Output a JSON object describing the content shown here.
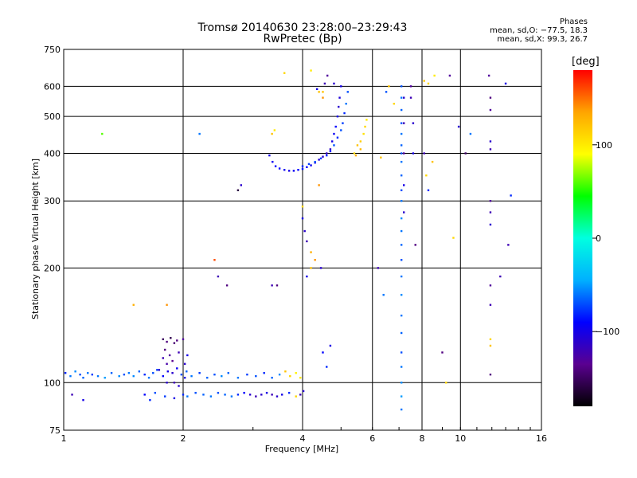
{
  "chart_data": {
    "type": "scatter",
    "title": "Tromsø 20140630 23:28:00–23:29:43",
    "subtitle": "RwPretec (Bp)",
    "xlabel": "Frequency [MHz]",
    "ylabel": "Stationary phase Virtual Height [km]",
    "x_scale": "log",
    "y_scale": "log",
    "xlim": [
      1,
      16
    ],
    "ylim": [
      75,
      750
    ],
    "x_ticks": [
      1,
      2,
      4,
      6,
      8,
      10,
      16
    ],
    "x_tick_labels": [
      "1",
      "2",
      "4",
      "6",
      "8",
      "10",
      "16"
    ],
    "y_ticks": [
      75,
      100,
      200,
      300,
      400,
      500,
      600,
      750
    ],
    "y_tick_labels": [
      "75",
      "100",
      "200",
      "300",
      "400",
      "500",
      "600",
      "750"
    ],
    "grid": true,
    "phases_header": "Phases",
    "phase_stats": [
      "mean, sd,O: −77.5, 18.3",
      "mean, sd,X:  99.3, 26.7"
    ],
    "colorbar": {
      "label": "[deg]",
      "range": [
        -180,
        180
      ],
      "ticks": [
        100,
        0,
        -100
      ],
      "tick_labels": [
        "100",
        "0",
        "−100"
      ],
      "colors": [
        "#000000",
        "#5a0090",
        "#0000ff",
        "#00b0ff",
        "#00ffe0",
        "#00ff00",
        "#ffff00",
        "#ffa500",
        "#ff0000"
      ]
    },
    "series": [
      {
        "points": [
          [
            1.01,
            106,
            -80
          ],
          [
            1.04,
            104,
            -60
          ],
          [
            1.07,
            107,
            -55
          ],
          [
            1.1,
            105,
            -70
          ],
          [
            1.12,
            103,
            -65
          ],
          [
            1.15,
            106,
            -60
          ],
          [
            1.18,
            105,
            -75
          ],
          [
            1.22,
            104,
            -60
          ],
          [
            1.27,
            103,
            -50
          ],
          [
            1.32,
            106,
            -65
          ],
          [
            1.38,
            104,
            -55
          ],
          [
            1.42,
            105,
            -70
          ],
          [
            1.46,
            106,
            -60
          ],
          [
            1.5,
            104,
            -55
          ],
          [
            1.55,
            107,
            -65
          ],
          [
            1.6,
            105,
            -80
          ],
          [
            1.64,
            103,
            -60
          ],
          [
            1.68,
            106,
            -70
          ],
          [
            1.72,
            108,
            -75
          ],
          [
            1.78,
            104,
            -90
          ],
          [
            1.83,
            107,
            -100
          ],
          [
            1.88,
            106,
            -110
          ],
          [
            1.93,
            109,
            -95
          ],
          [
            1.98,
            105,
            -70
          ],
          [
            2.04,
            107,
            -65
          ],
          [
            2.1,
            104,
            -60
          ],
          [
            2.2,
            106,
            -75
          ],
          [
            2.3,
            103,
            -65
          ],
          [
            2.4,
            105,
            -70
          ],
          [
            2.5,
            104,
            -55
          ],
          [
            2.6,
            106,
            -65
          ],
          [
            2.75,
            103,
            -60
          ],
          [
            2.9,
            105,
            -75
          ],
          [
            3.05,
            104,
            -70
          ],
          [
            3.2,
            106,
            -80
          ],
          [
            3.35,
            103,
            -65
          ],
          [
            3.5,
            105,
            -55
          ],
          [
            3.62,
            107,
            120
          ],
          [
            3.72,
            104,
            110
          ],
          [
            3.85,
            106,
            95
          ],
          [
            3.95,
            103,
            100
          ],
          [
            1.05,
            93,
            -120
          ],
          [
            1.12,
            90,
            -100
          ],
          [
            1.6,
            93,
            -90
          ],
          [
            1.65,
            90,
            -80
          ],
          [
            1.7,
            94,
            -70
          ],
          [
            1.8,
            92,
            -75
          ],
          [
            1.9,
            91,
            -100
          ],
          [
            2.0,
            93,
            -80
          ],
          [
            2.05,
            92,
            -60
          ],
          [
            2.15,
            94,
            -70
          ],
          [
            2.25,
            93,
            -65
          ],
          [
            2.35,
            92,
            -60
          ],
          [
            2.45,
            94,
            -70
          ],
          [
            2.55,
            93,
            -65
          ],
          [
            2.65,
            92,
            -60
          ],
          [
            2.75,
            93,
            -80
          ],
          [
            2.85,
            94,
            -90
          ],
          [
            2.95,
            93,
            -110
          ],
          [
            3.05,
            92,
            -120
          ],
          [
            3.15,
            93,
            -110
          ],
          [
            3.25,
            94,
            -100
          ],
          [
            3.35,
            93,
            -120
          ],
          [
            3.45,
            92,
            -110
          ],
          [
            3.55,
            93,
            -100
          ],
          [
            3.7,
            94,
            -80
          ],
          [
            3.85,
            92,
            110
          ],
          [
            3.95,
            93,
            -120
          ],
          [
            4.02,
            95,
            -110
          ],
          [
            1.78,
            130,
            -150
          ],
          [
            1.82,
            128,
            -140
          ],
          [
            1.86,
            131,
            -155
          ],
          [
            1.9,
            127,
            -145
          ],
          [
            1.93,
            129,
            -140
          ],
          [
            1.8,
            122,
            -140
          ],
          [
            1.85,
            118,
            -130
          ],
          [
            1.88,
            114,
            -135
          ],
          [
            1.82,
            112,
            -125
          ],
          [
            1.78,
            116,
            -120
          ],
          [
            2.0,
            130,
            -130
          ],
          [
            2.05,
            118,
            -100
          ],
          [
            2.02,
            112,
            -110
          ],
          [
            1.95,
            120,
            -120
          ],
          [
            1.74,
            108,
            -110
          ],
          [
            1.82,
            100,
            -110
          ],
          [
            1.9,
            100,
            -120
          ],
          [
            1.95,
            98,
            -110
          ],
          [
            2.02,
            103,
            -100
          ],
          [
            3.3,
            395,
            -100
          ],
          [
            3.36,
            380,
            -95
          ],
          [
            3.42,
            370,
            -90
          ],
          [
            3.5,
            365,
            -90
          ],
          [
            3.6,
            362,
            -95
          ],
          [
            3.7,
            360,
            -100
          ],
          [
            3.8,
            360,
            -95
          ],
          [
            3.9,
            362,
            -90
          ],
          [
            4.0,
            364,
            -85
          ],
          [
            4.1,
            368,
            -90
          ],
          [
            4.2,
            372,
            -95
          ],
          [
            4.3,
            378,
            -100
          ],
          [
            4.4,
            385,
            -105
          ],
          [
            4.5,
            392,
            -110
          ],
          [
            4.6,
            400,
            -115
          ],
          [
            4.7,
            410,
            -110
          ],
          [
            4.75,
            430,
            -100
          ],
          [
            4.8,
            450,
            -95
          ],
          [
            4.85,
            470,
            -90
          ],
          [
            4.9,
            500,
            -100
          ],
          [
            4.93,
            530,
            -110
          ],
          [
            4.96,
            560,
            -105
          ],
          [
            5.0,
            600,
            -100
          ],
          [
            4.0,
            370,
            -80
          ],
          [
            4.15,
            375,
            -75
          ],
          [
            4.3,
            380,
            -70
          ],
          [
            4.45,
            388,
            -75
          ],
          [
            4.6,
            395,
            -80
          ],
          [
            4.7,
            405,
            -85
          ],
          [
            4.8,
            420,
            -70
          ],
          [
            4.9,
            440,
            -80
          ],
          [
            5.0,
            460,
            -70
          ],
          [
            5.05,
            480,
            -75
          ],
          [
            5.1,
            510,
            -80
          ],
          [
            5.15,
            540,
            -60
          ],
          [
            5.2,
            580,
            -70
          ],
          [
            5.4,
            400,
            110
          ],
          [
            5.5,
            420,
            120
          ],
          [
            5.6,
            430,
            115
          ],
          [
            5.7,
            450,
            105
          ],
          [
            5.75,
            470,
            110
          ],
          [
            5.8,
            490,
            100
          ],
          [
            5.6,
            410,
            125
          ],
          [
            5.45,
            395,
            130
          ],
          [
            4.8,
            610,
            -110
          ],
          [
            4.62,
            640,
            -130
          ],
          [
            4.5,
            580,
            120
          ],
          [
            4.2,
            660,
            100
          ],
          [
            3.6,
            650,
            110
          ],
          [
            4.55,
            610,
            -120
          ],
          [
            4.35,
            590,
            -100
          ],
          [
            4.0,
            270,
            -100
          ],
          [
            4.05,
            250,
            -110
          ],
          [
            4.1,
            235,
            -120
          ],
          [
            4.0,
            290,
            110
          ],
          [
            4.2,
            220,
            130
          ],
          [
            4.3,
            210,
            140
          ],
          [
            4.45,
            200,
            -110
          ],
          [
            4.2,
            200,
            120
          ],
          [
            4.1,
            190,
            -100
          ],
          [
            4.6,
            110,
            -80
          ],
          [
            4.5,
            120,
            -90
          ],
          [
            4.7,
            125,
            -100
          ],
          [
            7.1,
            600,
            -70
          ],
          [
            7.1,
            560,
            -60
          ],
          [
            7.1,
            520,
            -65
          ],
          [
            7.1,
            480,
            -70
          ],
          [
            7.1,
            450,
            -60
          ],
          [
            7.1,
            420,
            -65
          ],
          [
            7.1,
            400,
            -70
          ],
          [
            7.1,
            380,
            -60
          ],
          [
            7.1,
            350,
            -65
          ],
          [
            7.1,
            320,
            -70
          ],
          [
            7.1,
            300,
            -60
          ],
          [
            7.1,
            270,
            -55
          ],
          [
            7.1,
            250,
            -60
          ],
          [
            7.1,
            230,
            -65
          ],
          [
            7.1,
            210,
            -70
          ],
          [
            7.1,
            190,
            -60
          ],
          [
            7.1,
            170,
            -55
          ],
          [
            7.1,
            150,
            -60
          ],
          [
            7.1,
            135,
            -65
          ],
          [
            7.1,
            120,
            -70
          ],
          [
            7.1,
            110,
            -60
          ],
          [
            7.1,
            100,
            -55
          ],
          [
            7.1,
            92,
            -50
          ],
          [
            7.1,
            85,
            -60
          ],
          [
            7.2,
            560,
            -110
          ],
          [
            7.2,
            480,
            -120
          ],
          [
            7.2,
            400,
            -130
          ],
          [
            7.2,
            330,
            -100
          ],
          [
            7.2,
            280,
            -110
          ],
          [
            7.5,
            600,
            -130
          ],
          [
            7.5,
            560,
            -120
          ],
          [
            7.6,
            480,
            -110
          ],
          [
            7.6,
            400,
            -100
          ],
          [
            7.7,
            230,
            -140
          ],
          [
            6.6,
            600,
            120
          ],
          [
            6.5,
            580,
            -70
          ],
          [
            6.8,
            540,
            110
          ],
          [
            6.3,
            390,
            120
          ],
          [
            6.2,
            200,
            -120
          ],
          [
            6.4,
            170,
            -60
          ],
          [
            8.1,
            620,
            120
          ],
          [
            8.3,
            610,
            110
          ],
          [
            8.6,
            640,
            100
          ],
          [
            8.1,
            400,
            -120
          ],
          [
            8.2,
            350,
            110
          ],
          [
            8.3,
            320,
            -80
          ],
          [
            8.5,
            380,
            120
          ],
          [
            9.0,
            120,
            -140
          ],
          [
            9.2,
            100,
            110
          ],
          [
            9.4,
            640,
            -130
          ],
          [
            9.6,
            240,
            110
          ],
          [
            11.8,
            640,
            -130
          ],
          [
            11.9,
            560,
            -140
          ],
          [
            11.9,
            520,
            -130
          ],
          [
            11.9,
            430,
            -110
          ],
          [
            11.9,
            410,
            -120
          ],
          [
            11.9,
            300,
            -130
          ],
          [
            11.9,
            280,
            -120
          ],
          [
            11.9,
            260,
            -110
          ],
          [
            11.9,
            180,
            -130
          ],
          [
            11.9,
            160,
            -120
          ],
          [
            11.9,
            130,
            110
          ],
          [
            11.9,
            125,
            120
          ],
          [
            11.9,
            105,
            -140
          ],
          [
            12.6,
            190,
            -120
          ],
          [
            13.0,
            610,
            -100
          ],
          [
            13.2,
            230,
            -120
          ],
          [
            13.4,
            310,
            -80
          ],
          [
            10.3,
            400,
            -150
          ],
          [
            10.6,
            450,
            -60
          ],
          [
            9.9,
            470,
            -110
          ],
          [
            1.25,
            450,
            60
          ],
          [
            1.5,
            160,
            130
          ],
          [
            1.82,
            160,
            140
          ],
          [
            2.2,
            450,
            -60
          ],
          [
            2.45,
            190,
            -120
          ],
          [
            2.58,
            180,
            -140
          ],
          [
            2.4,
            210,
            160
          ],
          [
            2.75,
            320,
            -160
          ],
          [
            2.8,
            330,
            -110
          ],
          [
            3.35,
            180,
            -120
          ],
          [
            3.45,
            180,
            -140
          ],
          [
            3.35,
            450,
            120
          ],
          [
            3.4,
            460,
            100
          ],
          [
            4.4,
            580,
            120
          ],
          [
            4.5,
            560,
            140
          ],
          [
            4.4,
            330,
            140
          ]
        ]
      }
    ]
  }
}
